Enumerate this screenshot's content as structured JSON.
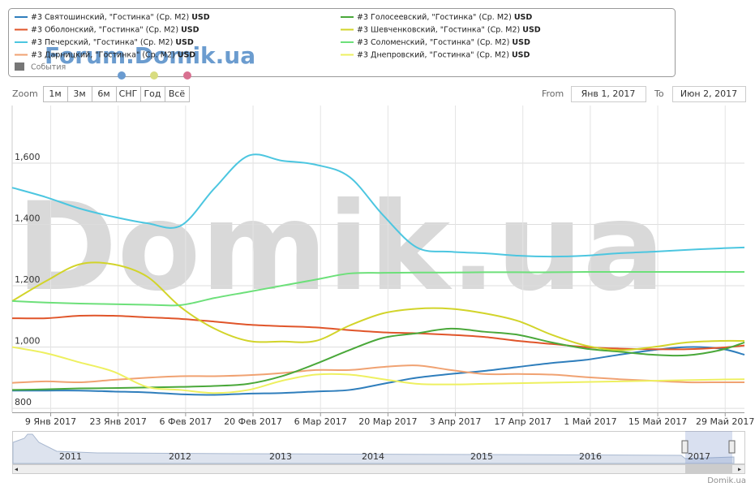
{
  "chart_data": {
    "type": "line",
    "watermark": "Domik.ua",
    "forum_watermark": "Forum.Domik.ua",
    "credit": "Domik.ua",
    "legend_unit": "USD",
    "events_label": "События",
    "range_selector": {
      "zoom_label": "Zoom",
      "buttons": [
        "1м",
        "3м",
        "6м",
        "СНГ",
        "Год",
        "Всё"
      ],
      "from_label": "From",
      "from_value": "Янв 1, 2017",
      "to_label": "To",
      "to_value": "Июн 2, 2017"
    },
    "navigator_years": [
      "2011",
      "2012",
      "2013",
      "2014",
      "2015",
      "2016",
      "2017"
    ],
    "x": [
      "2017-01-01",
      "2017-01-08",
      "2017-01-15",
      "2017-01-22",
      "2017-01-29",
      "2017-02-05",
      "2017-02-12",
      "2017-02-19",
      "2017-02-26",
      "2017-03-05",
      "2017-03-12",
      "2017-03-19",
      "2017-03-26",
      "2017-04-02",
      "2017-04-09",
      "2017-04-16",
      "2017-04-23",
      "2017-04-30",
      "2017-05-07",
      "2017-05-14",
      "2017-05-21",
      "2017-05-28",
      "2017-06-02"
    ],
    "xlim": [
      "2017-01-01",
      "2017-06-02"
    ],
    "xticks": [
      {
        "value": "2017-01-09",
        "label": "9 Янв 2017"
      },
      {
        "value": "2017-01-23",
        "label": "23 Янв 2017"
      },
      {
        "value": "2017-02-06",
        "label": "6 Фев 2017"
      },
      {
        "value": "2017-02-20",
        "label": "20 Фев 2017"
      },
      {
        "value": "2017-03-06",
        "label": "6 Мар 2017"
      },
      {
        "value": "2017-03-20",
        "label": "20 Мар 2017"
      },
      {
        "value": "2017-04-03",
        "label": "3 Апр 2017"
      },
      {
        "value": "2017-04-17",
        "label": "17 Апр 2017"
      },
      {
        "value": "2017-05-01",
        "label": "1 Май 2017"
      },
      {
        "value": "2017-05-15",
        "label": "15 Май 2017"
      },
      {
        "value": "2017-05-29",
        "label": "29 Май 2017"
      }
    ],
    "ylim": [
      787,
      1788
    ],
    "yticks": [
      800,
      {
        "value": 1000,
        "label": "1,000"
      },
      {
        "value": 1200,
        "label": "1,200"
      },
      {
        "value": 1400,
        "label": "1,400"
      },
      {
        "value": 1600,
        "label": "1,600"
      }
    ],
    "grid": true,
    "series": [
      {
        "name": "#3 Святошинский, \"Гостинка\" (Ср. М2)",
        "color": "#2f7ebc",
        "values": [
          858,
          858,
          858,
          855,
          852,
          846,
          844,
          848,
          850,
          855,
          860,
          880,
          900,
          912,
          922,
          935,
          948,
          958,
          975,
          990,
          1000,
          995,
          975
        ]
      },
      {
        "name": "#3 Оболонский, \"Гостинка\" (Ср. М2)",
        "color": "#e0552a",
        "values": [
          1094,
          1094,
          1102,
          1102,
          1097,
          1092,
          1083,
          1073,
          1068,
          1064,
          1055,
          1048,
          1045,
          1040,
          1033,
          1020,
          1010,
          1000,
          995,
          993,
          993,
          998,
          1005
        ]
      },
      {
        "name": "#3 Печерский, \"Гостинка\" (Ср. М2)",
        "color": "#4cc6e0",
        "values": [
          1520,
          1489,
          1452,
          1425,
          1404,
          1396,
          1518,
          1624,
          1608,
          1595,
          1555,
          1430,
          1325,
          1311,
          1306,
          1298,
          1295,
          1298,
          1306,
          1311,
          1317,
          1322,
          1325
        ]
      },
      {
        "name": "#3 Дарницкий, \"Гостинка\" (Ср. М2)",
        "color": "#f0a272",
        "values": [
          883,
          888,
          885,
          893,
          900,
          905,
          905,
          908,
          915,
          925,
          925,
          935,
          940,
          925,
          912,
          912,
          910,
          902,
          895,
          890,
          885,
          885,
          885
        ]
      },
      {
        "name": "#3 Голосеевский, \"Гостинка\" (Ср. М2)",
        "color": "#4aa83a",
        "values": [
          860,
          862,
          865,
          866,
          868,
          870,
          873,
          880,
          905,
          945,
          990,
          1030,
          1045,
          1060,
          1050,
          1040,
          1015,
          995,
          985,
          975,
          973,
          990,
          1015
        ]
      },
      {
        "name": "#3 Шевченковский, \"Гостинка\" (Ср. М2)",
        "color": "#d2d42a",
        "values": [
          1150,
          1215,
          1270,
          1270,
          1230,
          1130,
          1060,
          1020,
          1018,
          1020,
          1070,
          1110,
          1125,
          1125,
          1110,
          1085,
          1040,
          1005,
          990,
          1000,
          1015,
          1020,
          1020
        ]
      },
      {
        "name": "#3 Соломенский, \"Гостинка\" (Ср. М2)",
        "color": "#6de07a",
        "values": [
          1150,
          1145,
          1142,
          1140,
          1138,
          1137,
          1160,
          1180,
          1200,
          1220,
          1240,
          1242,
          1243,
          1243,
          1244,
          1244,
          1244,
          1245,
          1245,
          1245,
          1245,
          1245,
          1245
        ]
      },
      {
        "name": "#3 Днепровский, \"Гостинка\" (Ср. М2)",
        "color": "#eef060",
        "values": [
          1000,
          980,
          950,
          920,
          870,
          860,
          850,
          860,
          890,
          910,
          910,
          895,
          880,
          878,
          880,
          882,
          884,
          886,
          888,
          890,
          892,
          894,
          895
        ]
      }
    ]
  }
}
